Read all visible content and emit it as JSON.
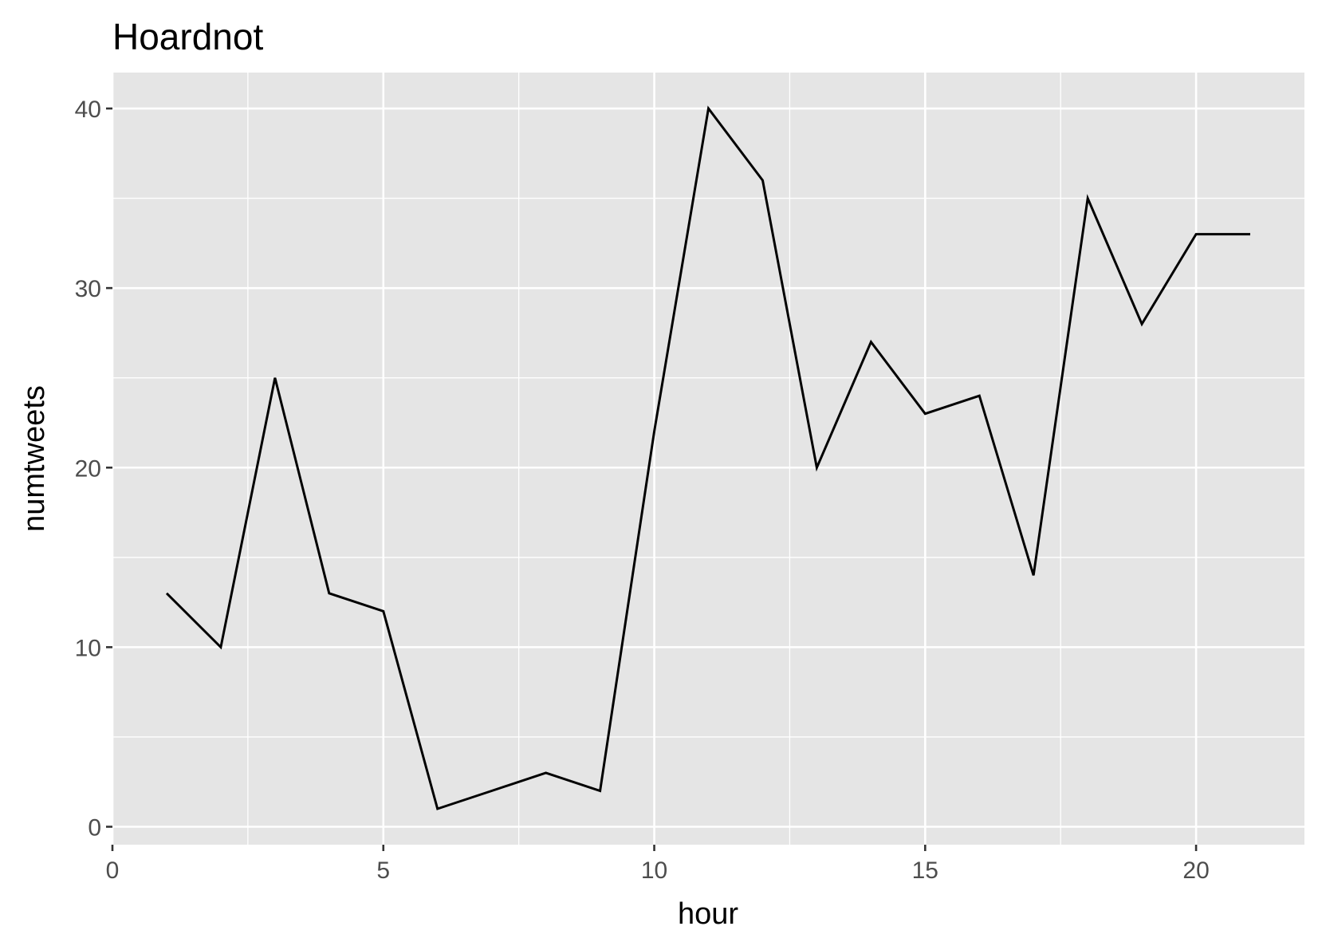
{
  "chart_data": {
    "type": "line",
    "title": "Hoardnot",
    "xlabel": "hour",
    "ylabel": "numtweets",
    "xlim": [
      0,
      22
    ],
    "ylim": [
      -1,
      42
    ],
    "x_ticks": [
      0,
      5,
      10,
      15,
      20
    ],
    "y_ticks": [
      0,
      10,
      20,
      30,
      40
    ],
    "grid": true,
    "colors": {
      "panel": "#e5e5e5",
      "grid": "#ffffff",
      "line": "#000000",
      "tick": "#333333"
    },
    "series": [
      {
        "x": [
          1,
          2,
          3,
          4,
          5,
          6,
          7,
          8,
          9,
          10,
          11,
          12,
          13,
          14,
          15,
          16,
          17,
          18,
          19,
          20,
          21
        ],
        "y": [
          13,
          10,
          25,
          13,
          12,
          1,
          2,
          3,
          2,
          22,
          40,
          36,
          20,
          27,
          23,
          24,
          14,
          35,
          28,
          33,
          33
        ]
      }
    ]
  }
}
